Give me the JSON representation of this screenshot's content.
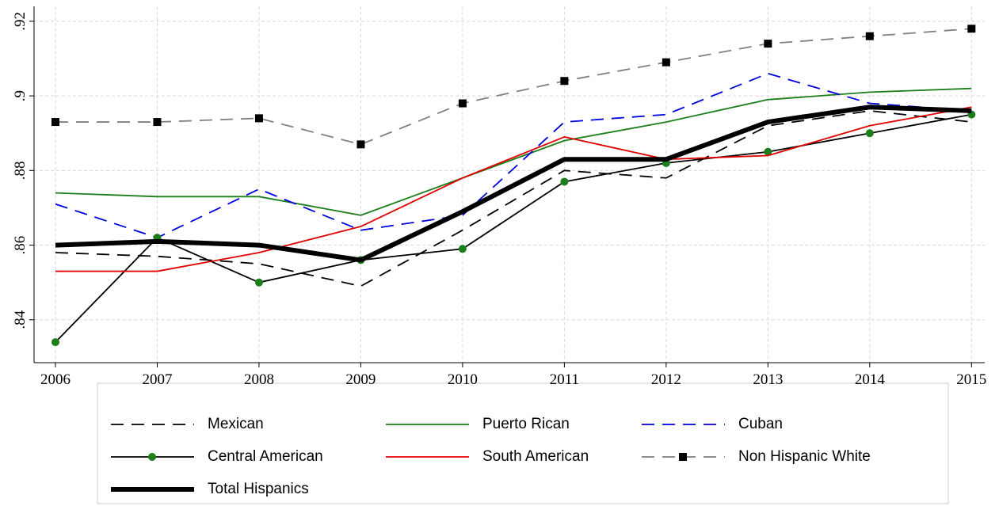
{
  "chart_data": {
    "type": "line",
    "x": [
      2006,
      2007,
      2008,
      2009,
      2010,
      2011,
      2012,
      2013,
      2014,
      2015
    ],
    "xlim": [
      2005.79,
      2015.13
    ],
    "xticks": [
      2006,
      2007,
      2008,
      2009,
      2010,
      2011,
      2012,
      2013,
      2014,
      2015
    ],
    "ylim": [
      0.8285,
      0.924
    ],
    "yticks": [
      {
        "value": 0.84,
        "label": ".84"
      },
      {
        "value": 0.86,
        "label": ".86"
      },
      {
        "value": 0.88,
        "label": ".88"
      },
      {
        "value": 0.9,
        "label": ".9"
      },
      {
        "value": 0.92,
        "label": ".92"
      }
    ],
    "grid": true,
    "legend": "bottom",
    "series": [
      {
        "name": "Mexican",
        "color": "#000000",
        "style": "dashed",
        "values": [
          0.858,
          0.857,
          0.855,
          0.849,
          0.864,
          0.88,
          0.878,
          0.892,
          0.896,
          0.893
        ]
      },
      {
        "name": "Puerto Rican",
        "color": "#1a7f1a",
        "style": "solid",
        "values": [
          0.874,
          0.873,
          0.873,
          0.868,
          0.878,
          0.888,
          0.893,
          0.899,
          0.901,
          0.902
        ]
      },
      {
        "name": "Cuban",
        "color": "#0000dd",
        "style": "dashed",
        "values": [
          0.871,
          0.862,
          0.875,
          0.864,
          0.868,
          0.893,
          0.895,
          0.906,
          0.898,
          0.896
        ]
      },
      {
        "name": "Central American",
        "color": "#000000",
        "style": "solid",
        "marker": "circle",
        "marker_color": "#1a7f1a",
        "values": [
          0.834,
          0.862,
          0.85,
          0.856,
          0.859,
          0.877,
          0.882,
          0.885,
          0.89,
          0.895
        ]
      },
      {
        "name": "South American",
        "color": "#e00000",
        "style": "solid",
        "values": [
          0.853,
          0.853,
          0.858,
          0.865,
          0.878,
          0.889,
          0.883,
          0.884,
          0.892,
          0.897
        ]
      },
      {
        "name": "Non Hispanic White",
        "color": "#808080",
        "style": "dashed",
        "marker": "square",
        "marker_color": "#000000",
        "values": [
          0.893,
          0.893,
          0.894,
          0.887,
          0.898,
          0.904,
          0.909,
          0.914,
          0.916,
          0.918
        ]
      },
      {
        "name": "Total Hispanics",
        "color": "#000000",
        "style": "thick",
        "values": [
          0.86,
          0.861,
          0.86,
          0.856,
          0.869,
          0.883,
          0.883,
          0.893,
          0.897,
          0.896
        ]
      }
    ]
  }
}
